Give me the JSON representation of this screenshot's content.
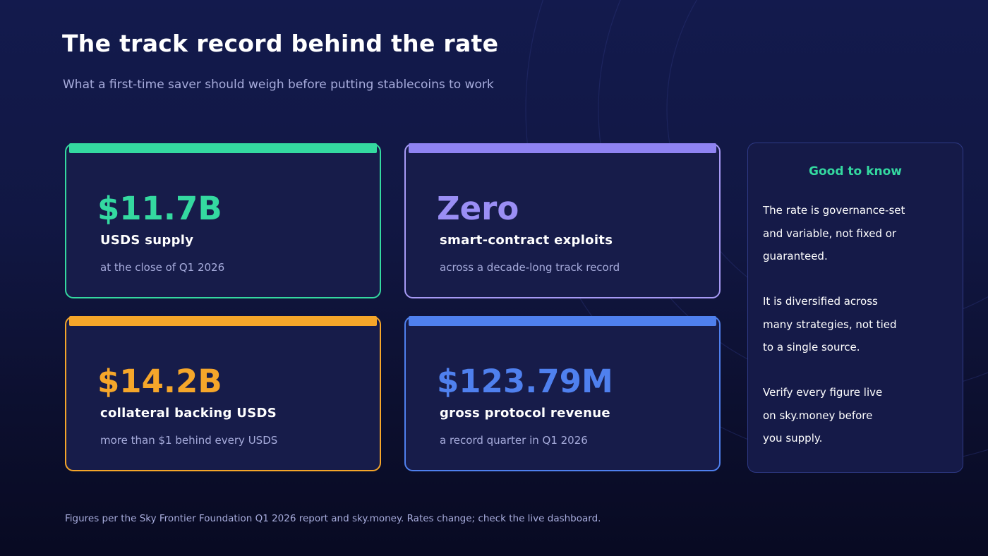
{
  "header": {
    "title": "The track record behind the rate",
    "subtitle": "What a first-time saver should weigh before putting stablecoins to work"
  },
  "cards": [
    {
      "value": "$11.7B",
      "label": "USDS supply",
      "description": "at the close of Q1 2026",
      "color": "#34d9a0"
    },
    {
      "value": "Zero",
      "label": "smart-contract exploits",
      "description": "across a decade-long track record",
      "color": "#a79af5"
    },
    {
      "value": "$14.2B",
      "label": "collateral backing USDS",
      "description": "more than $1 behind every USDS",
      "color": "#f5a62a"
    },
    {
      "value": "$123.79M",
      "label": "gross protocol revenue",
      "description": "a record quarter in Q1 2026",
      "color": "#4f80ee"
    }
  ],
  "side_panel": {
    "heading": "Good to know",
    "paragraphs": [
      "The rate is governance-set\nand variable, not fixed or\nguaranteed.",
      "It is diversified across\nmany strategies, not tied\nto a single source.",
      "Verify every figure live\non sky.money before\nyou supply."
    ]
  },
  "footnote": "Figures per the Sky Frontier Foundation Q1 2026 report and sky.money. Rates change; check the live dashboard.",
  "colors": {
    "background": "#111743",
    "card_background": "#171c4a",
    "muted_text": "#a7acdc",
    "accent_green": "#34d9a0"
  }
}
